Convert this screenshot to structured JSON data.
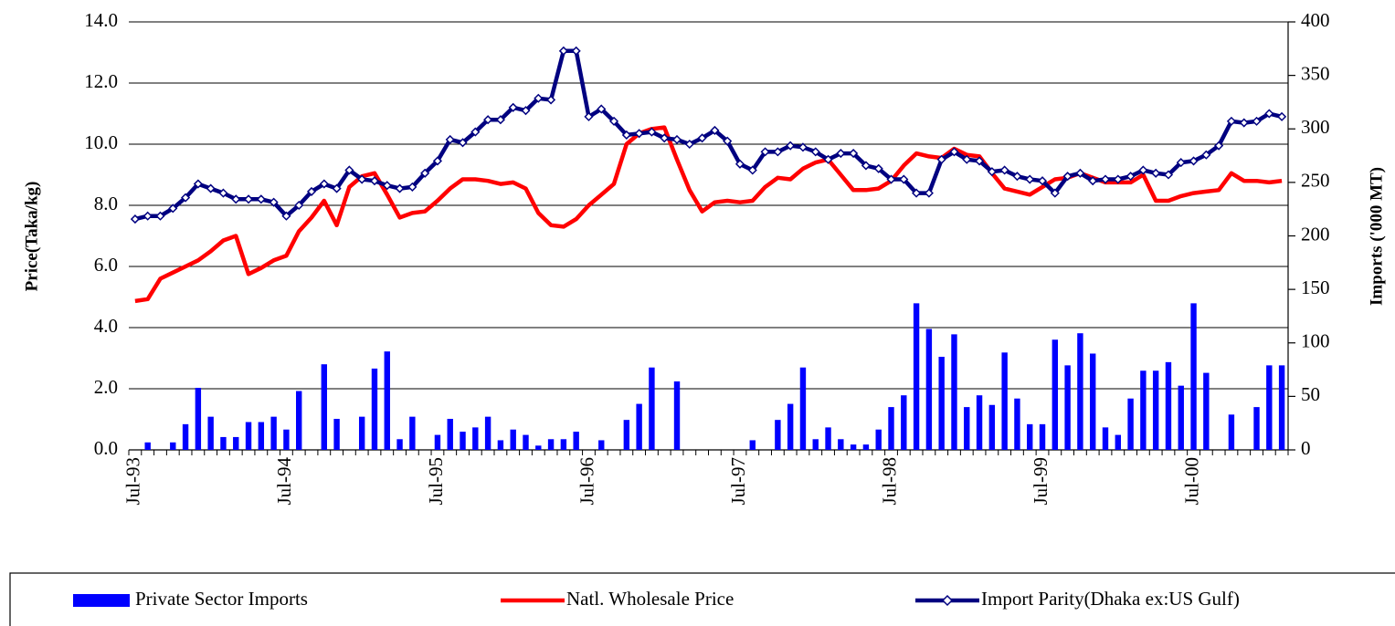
{
  "chart_data": {
    "type": "combo",
    "y_label": "Price(Taka/kg)",
    "y2_label": "Imports ('000 MT)",
    "categories": [
      "Jul-93",
      null,
      null,
      null,
      null,
      null,
      null,
      null,
      null,
      null,
      null,
      null,
      "Jul-94",
      null,
      null,
      null,
      null,
      null,
      null,
      null,
      null,
      null,
      null,
      null,
      "Jul-95",
      null,
      null,
      null,
      null,
      null,
      null,
      null,
      null,
      null,
      null,
      null,
      "Jul-96",
      null,
      null,
      null,
      null,
      null,
      null,
      null,
      null,
      null,
      null,
      null,
      "Jul-97",
      null,
      null,
      null,
      null,
      null,
      null,
      null,
      null,
      null,
      null,
      null,
      "Jul-98",
      null,
      null,
      null,
      null,
      null,
      null,
      null,
      null,
      null,
      null,
      null,
      "Jul-99",
      null,
      null,
      null,
      null,
      null,
      null,
      null,
      null,
      null,
      null,
      null,
      "Jul-00",
      null,
      null,
      null,
      null,
      null,
      null,
      null
    ],
    "ylim": [
      0,
      14
    ],
    "yticks": [
      {
        "value": 0,
        "label": "0.0"
      },
      {
        "value": 2,
        "label": "2.0"
      },
      {
        "value": 4,
        "label": "4.0"
      },
      {
        "value": 6,
        "label": "6.0"
      },
      {
        "value": 8,
        "label": "8.0"
      },
      {
        "value": 10,
        "label": "10.0"
      },
      {
        "value": 12,
        "label": "12.0"
      },
      {
        "value": 14,
        "label": "14.0"
      }
    ],
    "y2lim": [
      0,
      400
    ],
    "y2ticks": [
      0,
      50,
      100,
      150,
      200,
      250,
      300,
      350,
      400
    ],
    "grid": true,
    "legend": "bottom",
    "series": [
      {
        "name": "Private Sector Imports",
        "type": "bar",
        "axis": "y2",
        "color": "#0000ff",
        "values": [
          0,
          7,
          0,
          7,
          24,
          58,
          31,
          12,
          12,
          26,
          26,
          31,
          19,
          55,
          0,
          80,
          29,
          0,
          31,
          76,
          92,
          10,
          31,
          0,
          14,
          29,
          17,
          21,
          31,
          9,
          19,
          14,
          4,
          10,
          10,
          17,
          0,
          9,
          0,
          28,
          43,
          77,
          0,
          64,
          0,
          0,
          0,
          0,
          0,
          9,
          0,
          28,
          43,
          77,
          10,
          21,
          10,
          5,
          5,
          19,
          40,
          51,
          137,
          113,
          87,
          108,
          40,
          51,
          42,
          91,
          48,
          24,
          24,
          103,
          79,
          109,
          90,
          21,
          14,
          48,
          74,
          74,
          82,
          60,
          137,
          72,
          0,
          33,
          0,
          40,
          79,
          79
        ]
      },
      {
        "name": "Natl. Wholesale Price",
        "type": "line",
        "color": "#ff0000",
        "values": [
          4.87,
          4.93,
          5.6,
          5.8,
          6.0,
          6.2,
          6.5,
          6.85,
          7.0,
          5.75,
          5.95,
          6.2,
          6.35,
          7.15,
          7.6,
          8.15,
          7.35,
          8.6,
          8.95,
          9.05,
          8.35,
          7.6,
          7.75,
          7.8,
          8.15,
          8.55,
          8.85,
          8.85,
          8.8,
          8.7,
          8.75,
          8.55,
          7.75,
          7.35,
          7.3,
          7.55,
          8.0,
          8.35,
          8.7,
          10.0,
          10.35,
          10.5,
          10.55,
          9.5,
          8.5,
          7.8,
          8.1,
          8.15,
          8.1,
          8.15,
          8.6,
          8.9,
          8.85,
          9.2,
          9.4,
          9.5,
          9.0,
          8.5,
          8.5,
          8.55,
          8.8,
          9.3,
          9.7,
          9.6,
          9.55,
          9.85,
          9.65,
          9.6,
          9.05,
          8.55,
          8.45,
          8.35,
          8.6,
          8.85,
          8.9,
          9.05,
          8.9,
          8.75,
          8.75,
          8.75,
          9.0,
          8.15,
          8.15,
          8.3,
          8.4,
          8.45,
          8.5,
          9.05,
          8.8,
          8.8,
          8.75,
          8.8
        ]
      },
      {
        "name": "Import Parity(Dhaka ex:US Gulf)",
        "type": "line",
        "marker": "diamond",
        "color": "#000080",
        "values": [
          7.55,
          7.65,
          7.65,
          7.9,
          8.25,
          8.7,
          8.55,
          8.4,
          8.2,
          8.2,
          8.2,
          8.1,
          7.65,
          8.0,
          8.45,
          8.7,
          8.55,
          9.15,
          8.85,
          8.8,
          8.65,
          8.55,
          8.6,
          9.05,
          9.45,
          10.15,
          10.05,
          10.4,
          10.8,
          10.8,
          11.2,
          11.1,
          11.5,
          11.45,
          13.05,
          13.05,
          10.9,
          11.15,
          10.75,
          10.3,
          10.35,
          10.4,
          10.2,
          10.15,
          10.0,
          10.2,
          10.45,
          10.1,
          9.35,
          9.15,
          9.75,
          9.75,
          9.95,
          9.9,
          9.75,
          9.5,
          9.7,
          9.7,
          9.3,
          9.2,
          8.85,
          8.85,
          8.4,
          8.4,
          9.5,
          9.75,
          9.5,
          9.45,
          9.1,
          9.15,
          8.95,
          8.85,
          8.8,
          8.4,
          8.95,
          9.05,
          8.8,
          8.85,
          8.85,
          8.95,
          9.15,
          9.05,
          9.0,
          9.4,
          9.45,
          9.65,
          9.95,
          10.75,
          10.7,
          10.75,
          11.0,
          10.9
        ]
      }
    ]
  }
}
